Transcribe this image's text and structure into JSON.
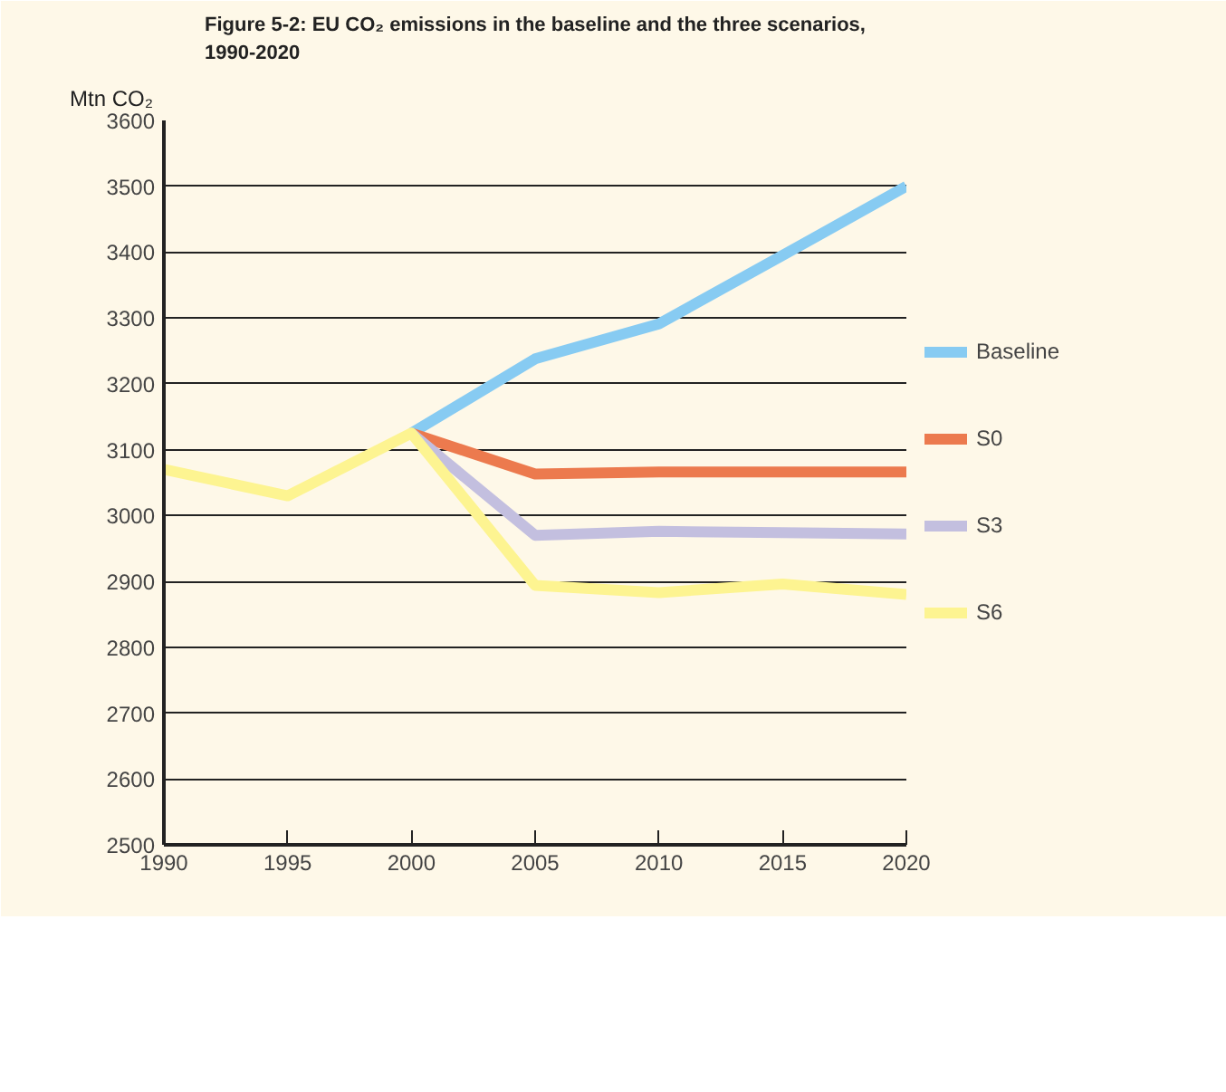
{
  "chart_data": {
    "type": "line",
    "title": "Figure 5-2: EU CO₂ emissions in the baseline and the three scenarios,\n1990-2020",
    "ylabel": "Mtn CO₂",
    "x": [
      1990,
      1995,
      2000,
      2005,
      2010,
      2015,
      2020
    ],
    "xlim": [
      1990,
      2020
    ],
    "xticks": [
      1990,
      1995,
      2000,
      2005,
      2010,
      2015,
      2020
    ],
    "ylim": [
      2500,
      3600
    ],
    "yticks": [
      2500,
      2600,
      2700,
      2800,
      2900,
      3000,
      3100,
      3200,
      3300,
      3400,
      3500,
      3600
    ],
    "grid": "y",
    "legend": "right",
    "marker": "none",
    "line_style": "solid",
    "series": [
      {
        "name": "Baseline",
        "color": "#87cbf2",
        "values": [
          null,
          null,
          3125,
          3238,
          3291,
          3395,
          3500
        ]
      },
      {
        "name": "S0",
        "color": "#ec7a4e",
        "values": [
          null,
          null,
          3125,
          3063,
          3066,
          3066,
          3066
        ]
      },
      {
        "name": "S3",
        "color": "#c3bfdf",
        "values": [
          null,
          null,
          3125,
          2970,
          2976,
          2974,
          2972
        ]
      },
      {
        "name": "S6",
        "color": "#fdf491",
        "values": [
          3070,
          3030,
          3125,
          2894,
          2883,
          2896,
          2880
        ]
      }
    ]
  }
}
